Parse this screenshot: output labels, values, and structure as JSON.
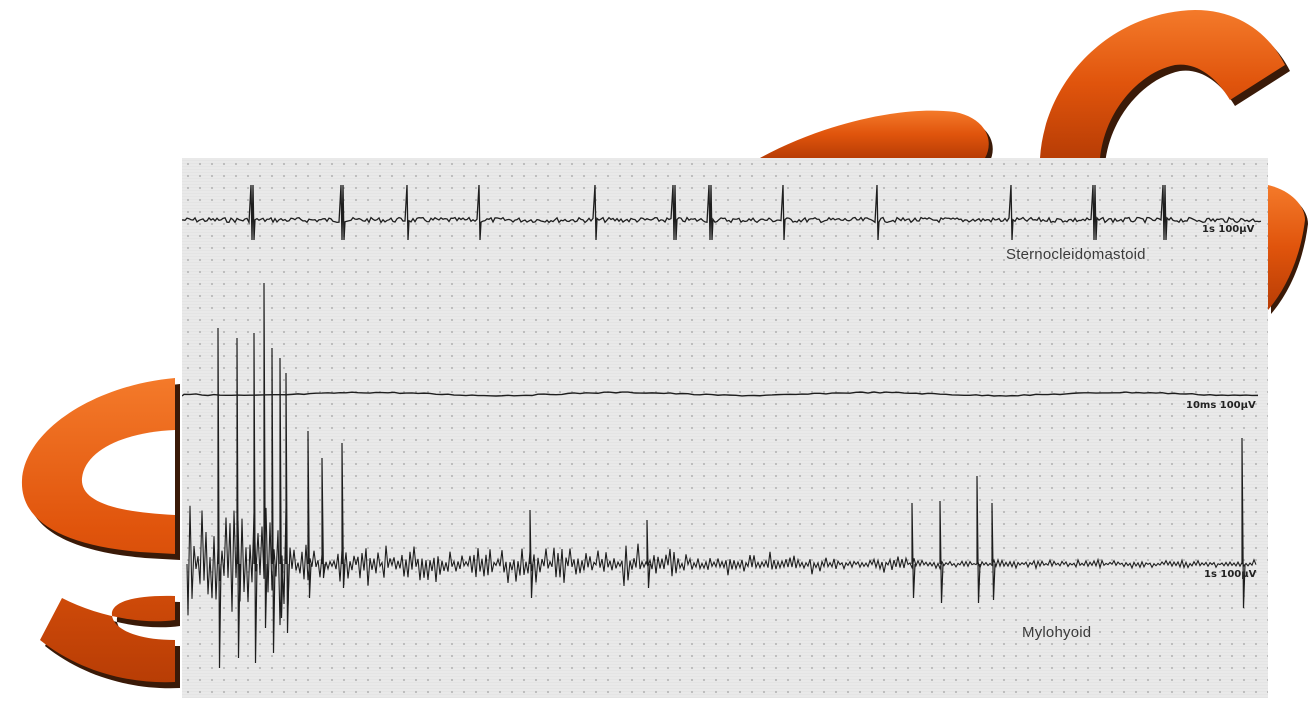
{
  "background": {
    "letters": [
      {
        "glyph": "S",
        "color": "#e0540c"
      },
      {
        "glyph": "G",
        "color": "#e0540c"
      }
    ],
    "accent_color": "#e0540c",
    "shadow_color": "#3a1a08"
  },
  "emg": {
    "traces": [
      {
        "id": "scm",
        "label": "Sternocleidomastoid",
        "scale": "1s 100µV"
      },
      {
        "id": "baseline",
        "label": "",
        "scale": "10ms 100µV"
      },
      {
        "id": "mylohyoid",
        "label": "Mylohyoid",
        "scale": "1s 100µV"
      }
    ]
  }
}
